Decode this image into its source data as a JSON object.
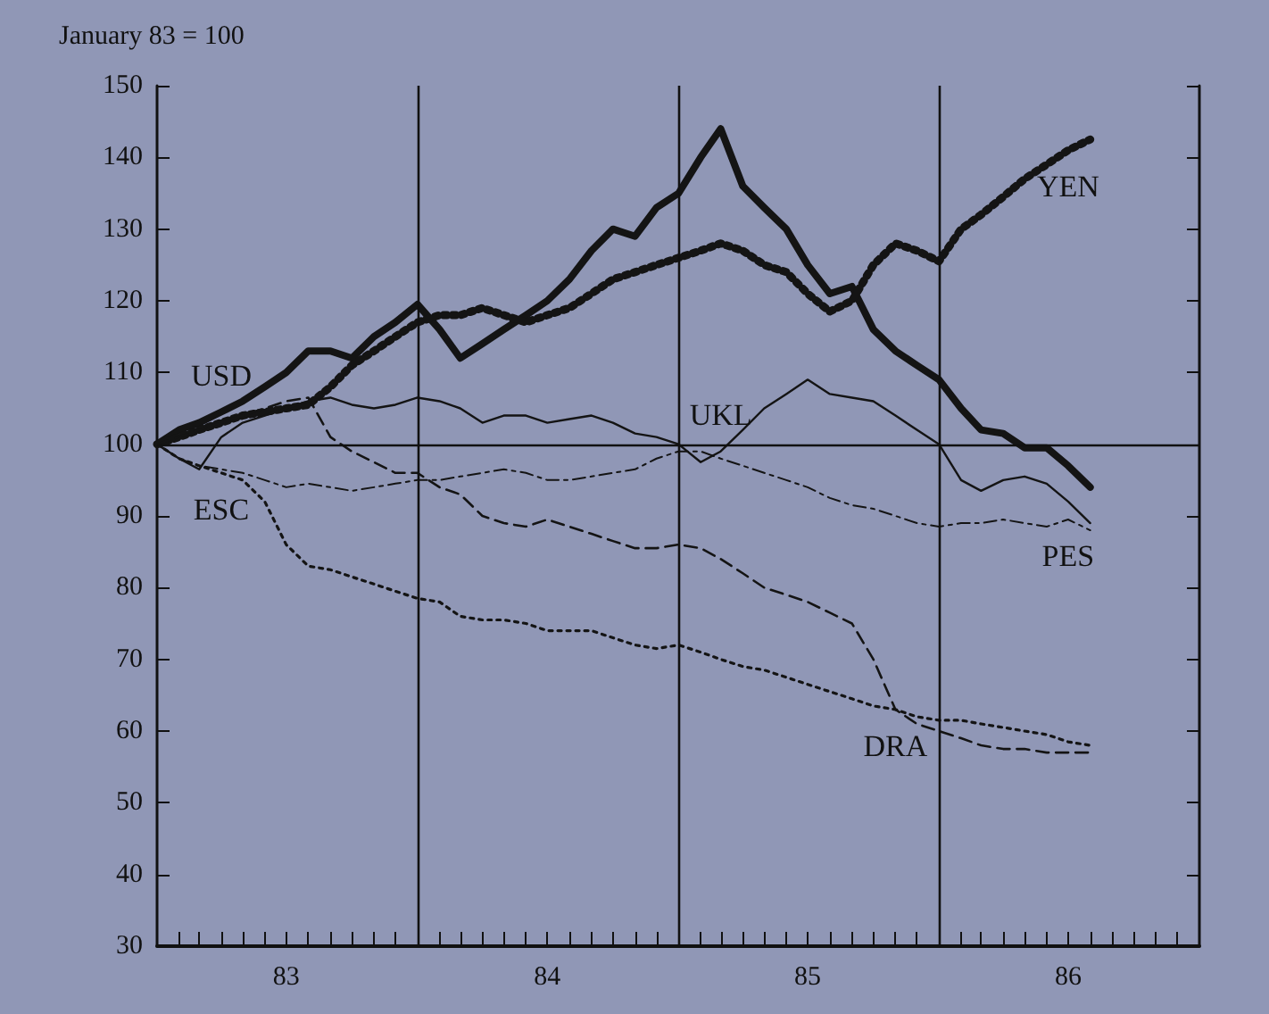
{
  "chart_data": {
    "type": "line",
    "title": "January 83 = 100",
    "x": [
      "1983-01",
      "1983-02",
      "1983-03",
      "1983-04",
      "1983-05",
      "1983-06",
      "1983-07",
      "1983-08",
      "1983-09",
      "1983-10",
      "1983-11",
      "1983-12",
      "1984-01",
      "1984-02",
      "1984-03",
      "1984-04",
      "1984-05",
      "1984-06",
      "1984-07",
      "1984-08",
      "1984-09",
      "1984-10",
      "1984-11",
      "1984-12",
      "1985-01",
      "1985-02",
      "1985-03",
      "1985-04",
      "1985-05",
      "1985-06",
      "1985-07",
      "1985-08",
      "1985-09",
      "1985-10",
      "1985-11",
      "1985-12",
      "1986-01",
      "1986-02",
      "1986-03",
      "1986-04",
      "1986-05",
      "1986-06",
      "1986-07",
      "1986-08"
    ],
    "series": [
      {
        "name": "USD",
        "color": "#141414",
        "line_style": "solid",
        "values": [
          100,
          102,
          103,
          104.5,
          106,
          108,
          110,
          113,
          113,
          112,
          115,
          117,
          119.5,
          116,
          112,
          114,
          116,
          118,
          120,
          123,
          127,
          130,
          129,
          133,
          135,
          140,
          144,
          136,
          133,
          130,
          125,
          121,
          122,
          116,
          113,
          111,
          109,
          105,
          102,
          101.5,
          99.5,
          99.5,
          97,
          94
        ]
      },
      {
        "name": "YEN",
        "color": "#141414",
        "line_style": "dotted",
        "values": [
          100,
          101,
          102,
          103,
          104,
          104.5,
          105,
          105.5,
          108,
          111,
          113,
          115,
          117,
          118,
          118,
          119,
          118,
          117,
          118,
          119,
          121,
          123,
          124,
          125,
          126,
          127,
          128,
          127,
          125,
          124,
          121,
          118.5,
          120,
          125,
          128,
          127,
          125.5,
          130,
          132,
          134.5,
          137,
          139,
          141,
          142.5
        ]
      },
      {
        "name": "UKL",
        "color": "#141414",
        "line_style": "solid",
        "values": [
          100,
          98,
          96.5,
          101,
          103,
          104,
          105,
          106,
          106.5,
          105.5,
          105,
          105.5,
          106.5,
          106,
          105,
          103,
          104,
          104,
          103,
          103.5,
          104,
          103,
          101.5,
          101,
          100,
          97.5,
          99,
          102,
          105,
          107,
          109,
          107,
          106.5,
          106,
          104,
          102,
          100,
          95,
          93.5,
          95,
          95.5,
          94.5,
          92,
          89
        ]
      },
      {
        "name": "PES",
        "color": "#141414",
        "line_style": "dashdot",
        "values": [
          100,
          98,
          97,
          96.5,
          96,
          95,
          94,
          94.5,
          94,
          93.5,
          94,
          94.5,
          95,
          95,
          95.5,
          96,
          96.5,
          96,
          95,
          95,
          95.5,
          96,
          96.5,
          98,
          99,
          99,
          98,
          97,
          96,
          95,
          94,
          92.5,
          91.5,
          91,
          90,
          89,
          88.5,
          89,
          89,
          89.5,
          89,
          88.5,
          89.5,
          88
        ]
      },
      {
        "name": "DRA",
        "color": "#141414",
        "line_style": "dashed",
        "values": [
          100,
          101,
          102,
          103,
          104,
          105,
          106,
          106.5,
          101,
          99,
          97.5,
          96,
          96,
          94,
          93,
          90,
          89,
          88.5,
          89.5,
          88.5,
          87.5,
          86.5,
          85.5,
          85.5,
          86,
          85.5,
          84,
          82,
          80,
          79,
          78,
          76.5,
          75,
          70,
          63,
          61,
          60,
          59,
          58,
          57.5,
          57.5,
          57,
          57,
          57
        ]
      },
      {
        "name": "ESC",
        "color": "#141414",
        "line_style": "dotted",
        "values": [
          100,
          98,
          97,
          96,
          95,
          92,
          86,
          83,
          82.5,
          81.5,
          80.5,
          79.5,
          78.5,
          78,
          76,
          75.5,
          75.5,
          75,
          74,
          74,
          74,
          73,
          72,
          71.5,
          72,
          71,
          70,
          69,
          68.5,
          67.5,
          66.5,
          65.5,
          64.5,
          63.5,
          63,
          62,
          61.5,
          61.5,
          61,
          60.5,
          60,
          59.5,
          58.5,
          58
        ]
      }
    ],
    "xlim": [
      "1983-01",
      "1987-01"
    ],
    "xticks": [
      {
        "value": "1983-02",
        "label": null
      },
      {
        "value": "1983-03",
        "label": null
      },
      {
        "value": "1983-04",
        "label": null
      },
      {
        "value": "1983-05",
        "label": null
      },
      {
        "value": "1983-06",
        "label": null
      },
      {
        "value": "1983-07",
        "label": "83"
      },
      {
        "value": "1983-08",
        "label": null
      },
      {
        "value": "1983-09",
        "label": null
      },
      {
        "value": "1983-10",
        "label": null
      },
      {
        "value": "1983-11",
        "label": null
      },
      {
        "value": "1983-12",
        "label": null
      },
      {
        "value": "1984-02",
        "label": null
      },
      {
        "value": "1984-03",
        "label": null
      },
      {
        "value": "1984-04",
        "label": null
      },
      {
        "value": "1984-05",
        "label": null
      },
      {
        "value": "1984-06",
        "label": null
      },
      {
        "value": "1984-07",
        "label": "84"
      },
      {
        "value": "1984-08",
        "label": null
      },
      {
        "value": "1984-09",
        "label": null
      },
      {
        "value": "1984-10",
        "label": null
      },
      {
        "value": "1984-11",
        "label": null
      },
      {
        "value": "1984-12",
        "label": null
      },
      {
        "value": "1985-02",
        "label": null
      },
      {
        "value": "1985-03",
        "label": null
      },
      {
        "value": "1985-04",
        "label": null
      },
      {
        "value": "1985-05",
        "label": null
      },
      {
        "value": "1985-06",
        "label": null
      },
      {
        "value": "1985-07",
        "label": "85"
      },
      {
        "value": "1985-08",
        "label": null
      },
      {
        "value": "1985-09",
        "label": null
      },
      {
        "value": "1985-10",
        "label": null
      },
      {
        "value": "1985-11",
        "label": null
      },
      {
        "value": "1985-12",
        "label": null
      },
      {
        "value": "1986-02",
        "label": null
      },
      {
        "value": "1986-03",
        "label": null
      },
      {
        "value": "1986-04",
        "label": null
      },
      {
        "value": "1986-05",
        "label": null
      },
      {
        "value": "1986-06",
        "label": null
      },
      {
        "value": "1986-07",
        "label": "86"
      },
      {
        "value": "1986-08",
        "label": null
      },
      {
        "value": "1986-09",
        "label": null
      },
      {
        "value": "1986-10",
        "label": null
      },
      {
        "value": "1986-11",
        "label": null
      },
      {
        "value": "1986-12",
        "label": null
      }
    ],
    "ylim": [
      30,
      150
    ],
    "yticks": [
      30,
      40,
      50,
      60,
      70,
      80,
      90,
      100,
      110,
      120,
      130,
      140,
      150
    ],
    "ref_lines": [
      {
        "axis": "x",
        "value": "1984-01",
        "label": null
      },
      {
        "axis": "x",
        "value": "1985-01",
        "label": null
      },
      {
        "axis": "x",
        "value": "1986-01",
        "label": null
      },
      {
        "axis": "y",
        "value": 100,
        "label": null
      }
    ],
    "grid": false,
    "marker": "none"
  }
}
